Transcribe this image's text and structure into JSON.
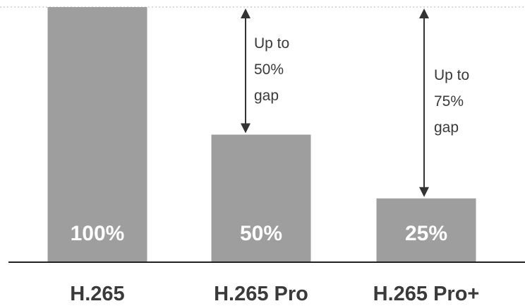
{
  "chart_data": {
    "type": "bar",
    "categories": [
      "H.265",
      "H.265 Pro",
      "H.265 Pro+"
    ],
    "values": [
      100,
      50,
      25
    ],
    "value_labels": [
      "100%",
      "50%",
      "25%"
    ],
    "ylim": [
      0,
      100
    ],
    "bar_color": "#9e9e9e",
    "grid": false,
    "reference_line": 100,
    "annotations": [
      {
        "from_value": 100,
        "to_value": 50,
        "category": "H.265 Pro",
        "lines": [
          "Up to",
          "50%",
          "gap"
        ]
      },
      {
        "from_value": 100,
        "to_value": 25,
        "category": "H.265 Pro+",
        "lines": [
          "Up to",
          "75%",
          "gap"
        ]
      }
    ]
  }
}
